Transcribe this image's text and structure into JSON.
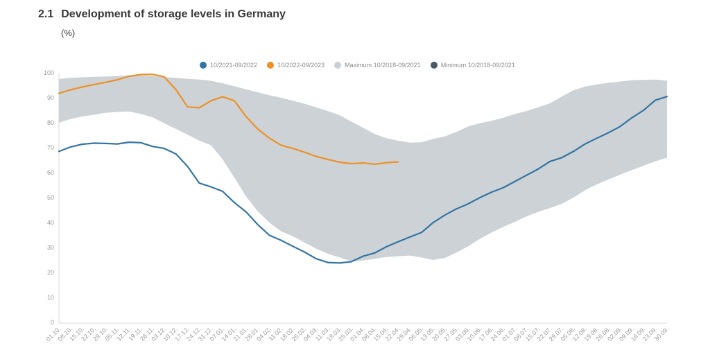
{
  "header": {
    "number": "2.1",
    "title": "Development of storage levels in Germany",
    "unit_label": "(%)"
  },
  "chart_data": {
    "type": "line",
    "title": "2.1 Development of storage levels in Germany",
    "subtitle": "(%)",
    "grid": false,
    "legend_position": "top",
    "ylim": [
      0,
      100
    ],
    "y_ticks": [
      0,
      10,
      20,
      30,
      40,
      50,
      60,
      70,
      80,
      90,
      100
    ],
    "x_labels": [
      "01.10.",
      "08.10.",
      "15.10.",
      "22.10.",
      "29.10.",
      "05.11.",
      "12.11.",
      "19.11.",
      "26.11.",
      "03.12.",
      "10.12.",
      "17.12.",
      "24.12.",
      "31.12.",
      "07.01.",
      "14.01.",
      "21.01.",
      "28.01.",
      "04.02.",
      "11.02.",
      "18.02.",
      "25.02.",
      "04.03.",
      "11.03.",
      "18.03.",
      "25.03.",
      "01.04.",
      "08.04.",
      "15.04.",
      "22.04.",
      "29.04.",
      "06.05.",
      "13.05.",
      "20.05.",
      "27.05.",
      "03.06.",
      "10.06.",
      "17.06.",
      "24.06.",
      "01.07.",
      "08.07.",
      "15.07.",
      "22.07.",
      "29.07.",
      "05.08.",
      "12.08.",
      "19.08.",
      "26.08.",
      "02.09.",
      "09.09.",
      "16.09.",
      "23.09.",
      "30.09."
    ],
    "series": [
      {
        "name": "10/2021-09/2022",
        "kind": "line",
        "color": "#3374a3",
        "values": [
          68.5,
          70.3,
          71.4,
          71.8,
          71.7,
          71.5,
          72.2,
          72.0,
          70.5,
          69.7,
          67.5,
          62.5,
          55.8,
          54.3,
          52.5,
          48.0,
          44.3,
          39.2,
          34.9,
          32.9,
          30.5,
          28.2,
          25.5,
          24.0,
          23.8,
          24.3,
          26.5,
          27.8,
          30.3,
          32.3,
          34.2,
          36.0,
          40.0,
          43.0,
          45.5,
          47.5,
          50.0,
          52.2,
          54.0,
          56.5,
          59.0,
          61.5,
          64.5,
          66.0,
          68.5,
          71.5,
          73.8,
          76.0,
          78.5,
          82.0,
          85.0,
          89.0,
          90.5
        ]
      },
      {
        "name": "10/2022-09/2023",
        "kind": "line",
        "color": "#ee9025",
        "values": [
          91.8,
          93.2,
          94.3,
          95.3,
          96.2,
          97.2,
          98.6,
          99.3,
          99.4,
          98.4,
          93.3,
          86.3,
          86.0,
          88.8,
          90.4,
          88.8,
          82.5,
          77.5,
          73.8,
          71.0,
          69.7,
          68.2,
          66.5,
          65.3,
          64.2,
          63.6,
          63.9,
          63.4,
          64.0,
          64.3,
          null,
          null,
          null,
          null,
          null,
          null,
          null,
          null,
          null,
          null,
          null,
          null,
          null,
          null,
          null,
          null,
          null,
          null,
          null,
          null,
          null,
          null,
          null
        ]
      },
      {
        "name": "Maximum 10/2018-09/2021",
        "kind": "band-max",
        "color": "#c9cfd4",
        "band_fill": "#ccd2d6",
        "values": [
          97.5,
          98.0,
          98.2,
          98.4,
          98.5,
          98.7,
          99.0,
          99.0,
          98.8,
          98.3,
          98.0,
          97.6,
          97.3,
          96.8,
          95.8,
          94.6,
          93.4,
          92.2,
          91.0,
          90.0,
          88.8,
          87.6,
          86.2,
          84.7,
          83.0,
          80.5,
          78.0,
          75.5,
          73.8,
          72.8,
          72.0,
          72.2,
          73.5,
          74.5,
          76.3,
          78.5,
          79.8,
          80.8,
          82.0,
          83.5,
          84.7,
          86.2,
          87.8,
          90.5,
          93.0,
          94.5,
          95.3,
          96.0,
          96.5,
          97.0,
          97.2,
          97.3,
          96.8
        ]
      },
      {
        "name": "Minimum 10/2018-09/2021",
        "kind": "band-min",
        "color": "#475a66",
        "values": [
          80.0,
          81.5,
          82.5,
          83.2,
          84.0,
          84.3,
          84.5,
          83.5,
          82.2,
          79.8,
          77.5,
          75.2,
          72.8,
          71.0,
          65.3,
          58.0,
          50.5,
          44.5,
          40.0,
          36.5,
          34.5,
          32.0,
          29.5,
          27.5,
          26.0,
          24.5,
          24.8,
          25.5,
          26.2,
          26.5,
          26.8,
          26.0,
          25.0,
          25.8,
          28.0,
          30.5,
          33.5,
          36.0,
          38.3,
          40.3,
          42.5,
          44.3,
          45.8,
          47.5,
          50.0,
          53.0,
          55.3,
          57.3,
          59.2,
          61.0,
          62.8,
          64.5,
          66.0
        ]
      }
    ],
    "axis_color": "#d9d9d9",
    "tick_label_color": "#9a9a9a"
  }
}
